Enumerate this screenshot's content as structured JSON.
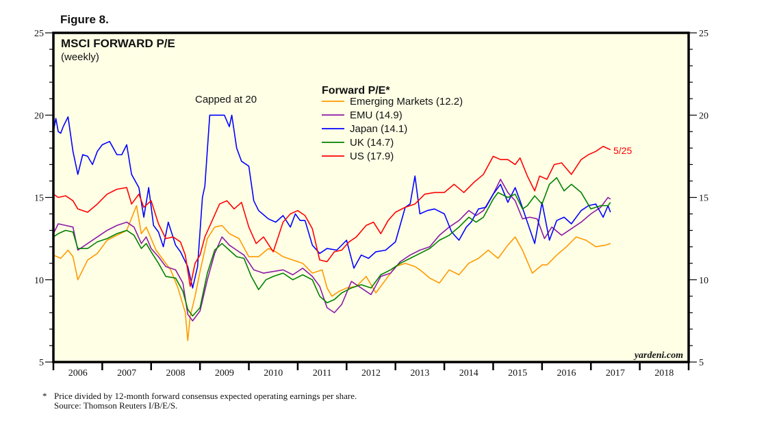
{
  "figure_label": "Figure 8.",
  "chart_data": {
    "type": "line",
    "title": "MSCI FORWARD P/E",
    "subtitle": "(weekly)",
    "xlabel": "",
    "ylabel": "",
    "xlim": [
      2006,
      2019
    ],
    "ylim": [
      5,
      25
    ],
    "y_ticks": [
      5,
      10,
      15,
      20,
      25
    ],
    "y_minor_step": 1,
    "x_ticks": [
      "2006",
      "2007",
      "2008",
      "2009",
      "2010",
      "2011",
      "2012",
      "2013",
      "2014",
      "2015",
      "2016",
      "2017",
      "2018"
    ],
    "grid": false,
    "legend": {
      "title": "Forward P/E*",
      "position": "top-center"
    },
    "annotations": {
      "cap_note": "Capped at 20",
      "last_date": "5/25",
      "watermark": "yardeni.com"
    },
    "series": [
      {
        "name": "Emerging Markets (12.2)",
        "color": "#ff9900",
        "x": [
          2006.0,
          2006.15,
          2006.3,
          2006.4,
          2006.5,
          2006.7,
          2006.9,
          2007.1,
          2007.3,
          2007.5,
          2007.7,
          2007.8,
          2007.9,
          2008.0,
          2008.1,
          2008.25,
          2008.4,
          2008.55,
          2008.7,
          2008.75,
          2008.8,
          2008.9,
          2009.0,
          2009.15,
          2009.3,
          2009.45,
          2009.6,
          2009.8,
          2010.0,
          2010.2,
          2010.4,
          2010.55,
          2010.7,
          2010.9,
          2011.1,
          2011.3,
          2011.5,
          2011.6,
          2011.7,
          2011.85,
          2012.0,
          2012.2,
          2012.4,
          2012.6,
          2012.8,
          2013.0,
          2013.2,
          2013.4,
          2013.5,
          2013.7,
          2013.9,
          2014.1,
          2014.3,
          2014.5,
          2014.7,
          2014.9,
          2015.1,
          2015.3,
          2015.45,
          2015.6,
          2015.8,
          2016.0,
          2016.1,
          2016.3,
          2016.5,
          2016.7,
          2016.9,
          2017.1,
          2017.3,
          2017.4
        ],
        "values": [
          11.5,
          11.3,
          11.8,
          11.4,
          10.0,
          11.2,
          11.6,
          12.4,
          12.7,
          13.0,
          14.5,
          12.8,
          13.2,
          12.5,
          11.8,
          11.2,
          10.6,
          9.5,
          8.0,
          6.3,
          7.8,
          9.0,
          10.5,
          12.5,
          13.2,
          13.3,
          12.8,
          12.5,
          11.4,
          11.4,
          11.9,
          11.7,
          11.4,
          11.2,
          11.0,
          10.4,
          10.6,
          9.5,
          9.0,
          9.3,
          9.5,
          9.6,
          10.2,
          9.2,
          10.0,
          10.8,
          11.0,
          10.8,
          10.6,
          10.1,
          9.8,
          10.6,
          10.3,
          11.0,
          11.3,
          11.8,
          11.3,
          12.1,
          12.6,
          11.8,
          10.4,
          10.9,
          10.9,
          11.5,
          12.0,
          12.6,
          12.4,
          12.0,
          12.1,
          12.2
        ]
      },
      {
        "name": "EMU (14.9)",
        "color": "#8b1aa5",
        "x": [
          2006.0,
          2006.1,
          2006.25,
          2006.4,
          2006.5,
          2006.7,
          2006.9,
          2007.1,
          2007.3,
          2007.5,
          2007.65,
          2007.8,
          2007.9,
          2008.0,
          2008.15,
          2008.3,
          2008.5,
          2008.65,
          2008.75,
          2008.85,
          2009.0,
          2009.15,
          2009.3,
          2009.45,
          2009.6,
          2009.75,
          2009.9,
          2010.1,
          2010.3,
          2010.5,
          2010.7,
          2010.9,
          2011.1,
          2011.3,
          2011.45,
          2011.6,
          2011.75,
          2011.9,
          2012.1,
          2012.3,
          2012.5,
          2012.7,
          2012.9,
          2013.1,
          2013.3,
          2013.5,
          2013.7,
          2013.9,
          2014.1,
          2014.3,
          2014.5,
          2014.65,
          2014.8,
          2015.0,
          2015.15,
          2015.3,
          2015.45,
          2015.6,
          2015.75,
          2015.9,
          2016.05,
          2016.2,
          2016.4,
          2016.6,
          2016.8,
          2017.0,
          2017.2,
          2017.35,
          2017.4
        ],
        "values": [
          12.8,
          13.4,
          13.3,
          13.2,
          11.8,
          12.2,
          12.6,
          13.0,
          13.3,
          13.5,
          13.2,
          12.2,
          12.6,
          11.9,
          11.4,
          10.8,
          10.6,
          9.8,
          7.9,
          7.5,
          8.1,
          10.0,
          11.6,
          12.6,
          12.1,
          11.8,
          11.5,
          10.6,
          10.4,
          10.5,
          10.6,
          10.3,
          10.7,
          10.2,
          9.6,
          8.3,
          8.0,
          8.5,
          9.9,
          9.5,
          9.1,
          10.2,
          10.4,
          11.1,
          11.5,
          11.8,
          12.0,
          12.7,
          13.2,
          13.6,
          14.2,
          13.9,
          14.2,
          15.2,
          16.1,
          15.3,
          14.8,
          13.7,
          13.8,
          13.7,
          12.5,
          13.2,
          12.7,
          13.1,
          13.5,
          14.0,
          14.4,
          15.0,
          14.9
        ]
      },
      {
        "name": "Japan (14.1)",
        "color": "#0000ff",
        "x": [
          2006.0,
          2006.05,
          2006.1,
          2006.15,
          2006.2,
          2006.3,
          2006.4,
          2006.5,
          2006.6,
          2006.7,
          2006.8,
          2006.9,
          2007.0,
          2007.15,
          2007.3,
          2007.4,
          2007.5,
          2007.6,
          2007.75,
          2007.85,
          2007.95,
          2008.05,
          2008.15,
          2008.25,
          2008.35,
          2008.5,
          2008.6,
          2008.75,
          2008.85,
          2008.95,
          2009.05,
          2009.1,
          2009.2,
          2009.5,
          2009.6,
          2009.65,
          2009.75,
          2009.85,
          2010.0,
          2010.1,
          2010.2,
          2010.4,
          2010.55,
          2010.7,
          2010.85,
          2010.95,
          2011.05,
          2011.15,
          2011.3,
          2011.45,
          2011.6,
          2011.8,
          2012.0,
          2012.15,
          2012.3,
          2012.45,
          2012.6,
          2012.8,
          2013.0,
          2013.2,
          2013.3,
          2013.4,
          2013.5,
          2013.65,
          2013.8,
          2014.0,
          2014.15,
          2014.3,
          2014.45,
          2014.55,
          2014.7,
          2014.85,
          2015.0,
          2015.15,
          2015.3,
          2015.45,
          2015.55,
          2015.7,
          2015.85,
          2016.0,
          2016.15,
          2016.3,
          2016.45,
          2016.6,
          2016.8,
          2016.95,
          2017.1,
          2017.25,
          2017.35,
          2017.4
        ],
        "values": [
          19.0,
          19.8,
          19.0,
          18.9,
          19.3,
          19.9,
          17.8,
          16.4,
          17.6,
          17.5,
          17.0,
          17.8,
          18.2,
          18.4,
          17.6,
          17.6,
          18.2,
          16.4,
          15.6,
          13.8,
          15.6,
          13.3,
          12.9,
          12.0,
          13.5,
          12.1,
          11.7,
          10.8,
          9.5,
          10.8,
          15.0,
          15.7,
          20.0,
          20.0,
          19.3,
          20.0,
          18.0,
          17.2,
          16.9,
          14.8,
          14.2,
          13.7,
          13.5,
          13.9,
          13.2,
          14.0,
          13.6,
          13.6,
          12.1,
          11.6,
          11.9,
          11.8,
          12.4,
          10.7,
          11.5,
          11.3,
          11.7,
          11.8,
          12.3,
          14.4,
          14.6,
          16.3,
          14.0,
          14.2,
          14.3,
          14.0,
          12.9,
          12.4,
          13.2,
          13.5,
          14.3,
          14.4,
          15.2,
          15.8,
          14.7,
          15.6,
          14.8,
          13.5,
          12.2,
          14.7,
          12.4,
          13.6,
          13.8,
          13.4,
          14.2,
          14.5,
          14.6,
          13.8,
          14.5,
          14.1
        ]
      },
      {
        "name": "UK (14.7)",
        "color": "#008000",
        "x": [
          2006.0,
          2006.1,
          2006.25,
          2006.4,
          2006.5,
          2006.7,
          2006.9,
          2007.1,
          2007.3,
          2007.5,
          2007.65,
          2007.8,
          2007.9,
          2008.0,
          2008.15,
          2008.3,
          2008.5,
          2008.65,
          2008.75,
          2008.85,
          2009.0,
          2009.15,
          2009.3,
          2009.45,
          2009.6,
          2009.75,
          2009.9,
          2010.05,
          2010.2,
          2010.35,
          2010.5,
          2010.7,
          2010.9,
          2011.1,
          2011.3,
          2011.45,
          2011.6,
          2011.75,
          2011.9,
          2012.1,
          2012.3,
          2012.5,
          2012.7,
          2012.9,
          2013.1,
          2013.3,
          2013.5,
          2013.7,
          2013.9,
          2014.1,
          2014.3,
          2014.5,
          2014.65,
          2014.8,
          2015.0,
          2015.1,
          2015.3,
          2015.45,
          2015.6,
          2015.7,
          2015.85,
          2016.0,
          2016.15,
          2016.3,
          2016.45,
          2016.6,
          2016.8,
          2017.0,
          2017.2,
          2017.35,
          2017.4
        ],
        "values": [
          12.6,
          12.8,
          13.0,
          12.9,
          11.9,
          11.9,
          12.3,
          12.5,
          12.8,
          13.0,
          12.7,
          11.9,
          12.2,
          11.7,
          11.0,
          10.2,
          10.1,
          9.3,
          8.2,
          7.8,
          8.3,
          10.4,
          11.8,
          12.2,
          11.8,
          11.4,
          11.3,
          10.2,
          9.4,
          10.0,
          10.2,
          10.4,
          10.0,
          10.3,
          10.0,
          9.0,
          8.6,
          8.8,
          9.2,
          9.5,
          9.7,
          9.5,
          10.3,
          10.6,
          11.0,
          11.3,
          11.6,
          11.9,
          12.4,
          12.7,
          13.2,
          13.8,
          13.5,
          13.8,
          14.9,
          15.3,
          15.0,
          15.2,
          14.3,
          14.5,
          15.1,
          14.6,
          15.8,
          16.2,
          15.4,
          15.8,
          15.3,
          14.3,
          14.5,
          14.5,
          14.7
        ]
      },
      {
        "name": "US (17.9)",
        "color": "#ff0000",
        "x": [
          2006.0,
          2006.1,
          2006.25,
          2006.4,
          2006.5,
          2006.7,
          2006.9,
          2007.1,
          2007.3,
          2007.5,
          2007.6,
          2007.75,
          2007.85,
          2008.0,
          2008.15,
          2008.3,
          2008.45,
          2008.6,
          2008.7,
          2008.8,
          2008.9,
          2009.0,
          2009.1,
          2009.25,
          2009.4,
          2009.55,
          2009.7,
          2009.85,
          2010.0,
          2010.15,
          2010.3,
          2010.5,
          2010.7,
          2010.85,
          2011.0,
          2011.15,
          2011.3,
          2011.45,
          2011.6,
          2011.75,
          2011.9,
          2012.05,
          2012.2,
          2012.4,
          2012.55,
          2012.7,
          2012.85,
          2013.0,
          2013.2,
          2013.4,
          2013.6,
          2013.8,
          2014.0,
          2014.2,
          2014.4,
          2014.6,
          2014.8,
          2015.0,
          2015.15,
          2015.3,
          2015.45,
          2015.55,
          2015.7,
          2015.85,
          2015.95,
          2016.1,
          2016.25,
          2016.4,
          2016.6,
          2016.8,
          2016.95,
          2017.1,
          2017.25,
          2017.4
        ],
        "values": [
          15.2,
          15.0,
          15.1,
          14.8,
          14.3,
          14.1,
          14.6,
          15.2,
          15.5,
          15.6,
          14.6,
          15.2,
          14.4,
          14.8,
          13.4,
          12.5,
          12.6,
          12.3,
          11.5,
          9.6,
          11.0,
          11.5,
          12.6,
          13.6,
          14.6,
          14.8,
          14.3,
          14.7,
          13.2,
          12.2,
          12.6,
          11.7,
          13.5,
          14.0,
          14.2,
          13.9,
          13.1,
          11.2,
          11.1,
          11.7,
          11.8,
          12.3,
          12.6,
          13.3,
          13.5,
          12.8,
          13.6,
          14.1,
          14.4,
          14.6,
          15.2,
          15.3,
          15.3,
          15.8,
          15.3,
          15.9,
          16.4,
          17.5,
          17.3,
          17.3,
          17.0,
          17.4,
          16.3,
          15.4,
          16.3,
          16.1,
          17.0,
          17.1,
          16.4,
          17.3,
          17.6,
          17.8,
          18.1,
          17.9
        ]
      }
    ]
  },
  "footnote": {
    "marker": "*",
    "line1": "Price divided by 12-month forward consensus expected operating earnings per share.",
    "line2": "Source: Thomson Reuters I/B/E/S."
  }
}
